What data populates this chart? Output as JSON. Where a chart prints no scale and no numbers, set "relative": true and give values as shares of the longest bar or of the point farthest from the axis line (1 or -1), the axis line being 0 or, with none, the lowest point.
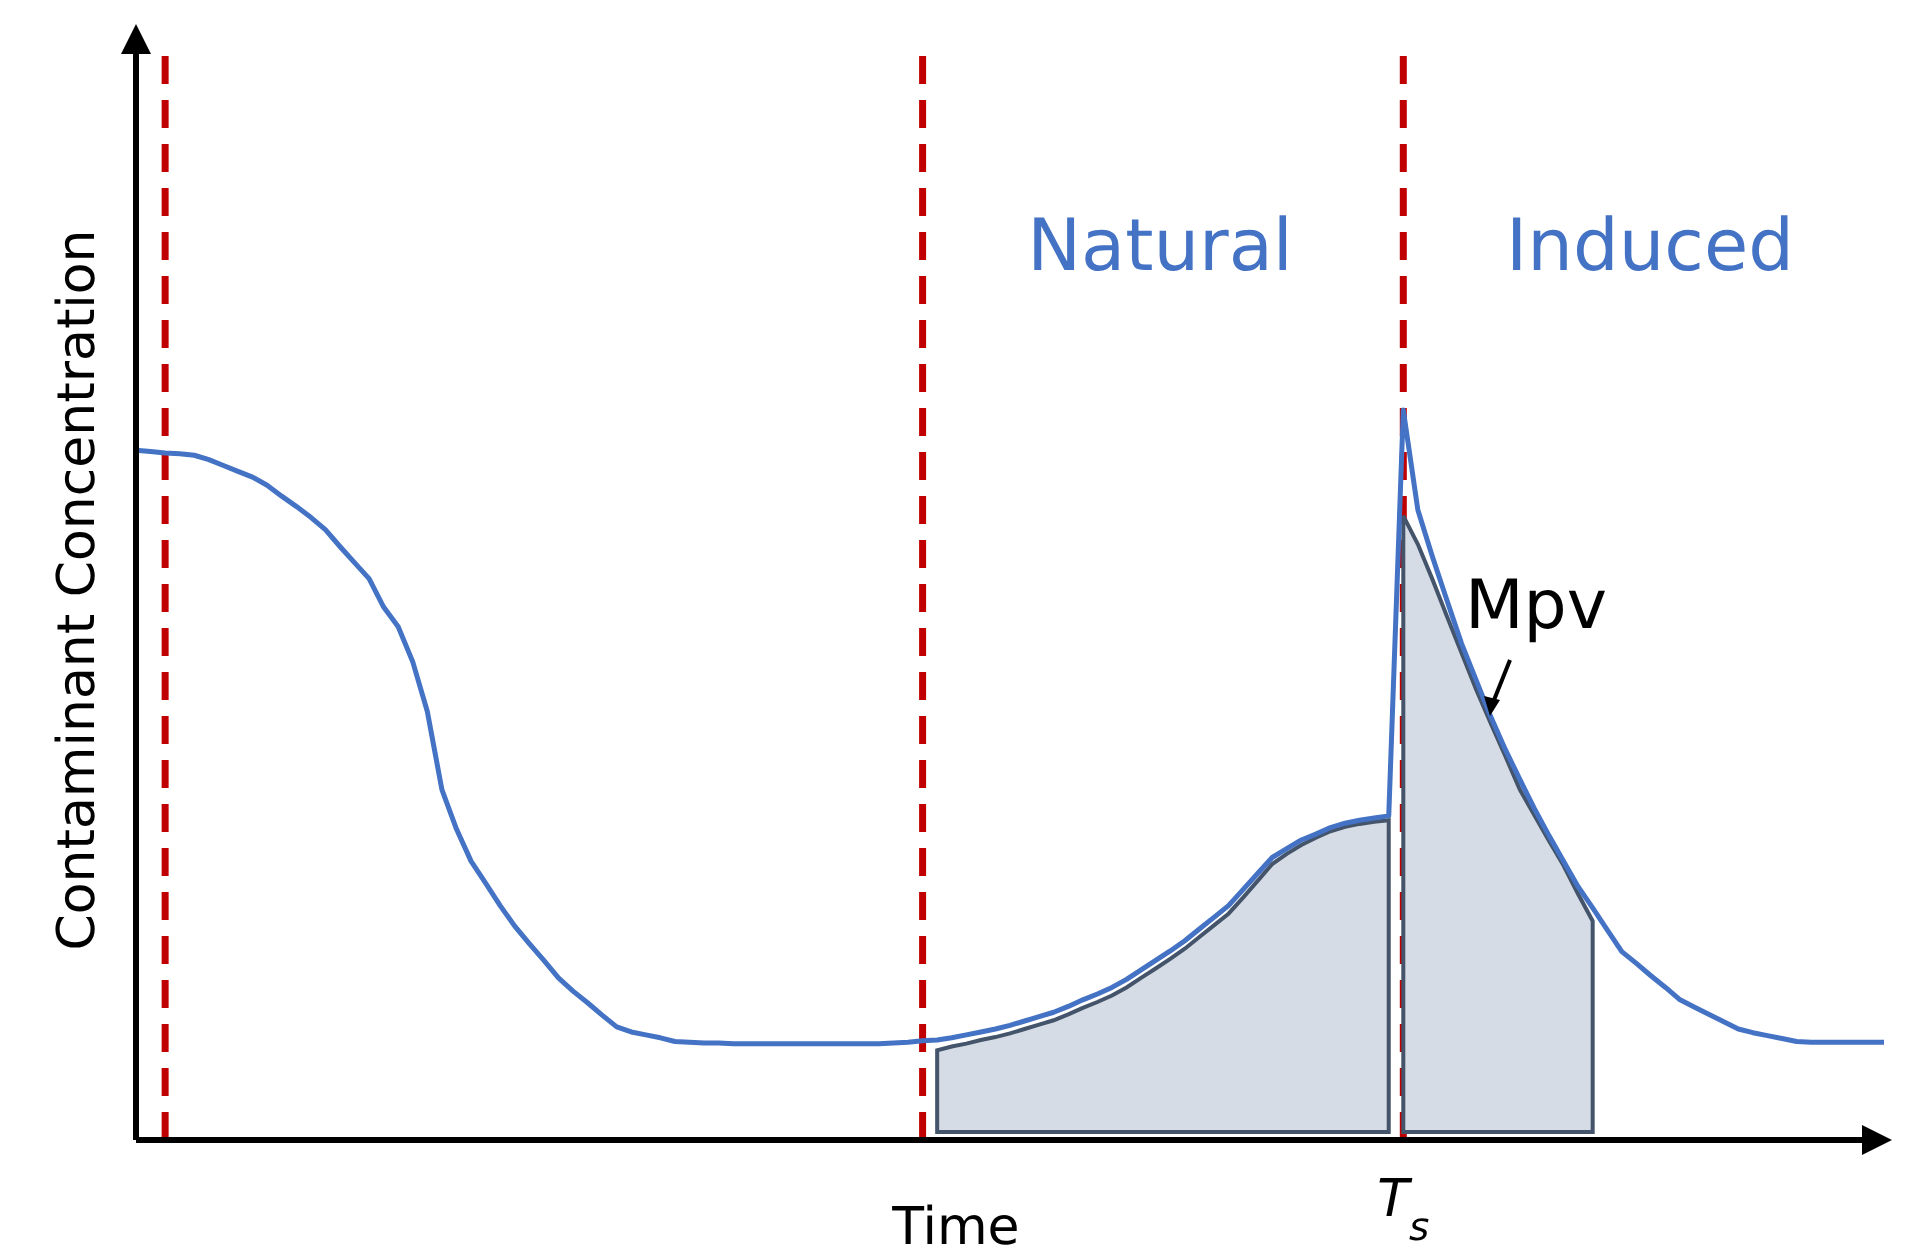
{
  "chart_data": {
    "type": "line",
    "relative": true,
    "xlabel": "Time",
    "ylabel": "Contaminant Concentration",
    "line_style": "solid",
    "grid": "x",
    "categories": [
      null,
      null,
      null,
      null,
      null,
      null,
      null,
      null,
      null,
      null,
      null,
      null,
      null,
      null,
      null,
      null,
      null,
      null,
      null,
      null,
      null,
      null,
      null,
      null,
      null,
      null,
      null,
      null,
      null,
      null,
      null,
      null,
      null,
      null,
      null,
      null,
      null,
      null,
      null,
      null,
      null,
      null,
      null,
      null,
      null,
      null,
      null,
      null,
      null,
      null,
      null,
      null,
      null,
      null,
      null,
      null,
      null,
      null,
      null,
      null,
      null,
      null,
      null,
      null,
      null,
      null,
      null,
      null,
      null,
      null,
      null,
      null,
      null,
      null,
      null,
      null,
      null,
      null,
      null,
      null,
      null,
      null,
      null,
      null,
      null,
      null,
      null,
      null,
      null,
      null,
      null,
      null,
      null,
      null,
      null,
      null,
      null,
      null,
      null,
      null,
      null,
      null,
      null,
      null,
      null,
      null,
      null,
      null,
      null,
      null,
      null,
      null,
      null,
      null,
      null,
      null,
      null,
      null,
      null,
      null,
      null
    ],
    "series": [
      {
        "type": "area",
        "color": "#d6dce5",
        "values": [
          null,
          null,
          null,
          null,
          null,
          null,
          null,
          null,
          null,
          null,
          null,
          null,
          null,
          null,
          null,
          null,
          null,
          null,
          null,
          null,
          null,
          null,
          null,
          null,
          null,
          null,
          null,
          null,
          null,
          null,
          null,
          null,
          null,
          null,
          null,
          null,
          null,
          null,
          null,
          null,
          null,
          null,
          null,
          null,
          null,
          null,
          null,
          null,
          null,
          null,
          null,
          null,
          null,
          null,
          null,
          0.123,
          0.128,
          0.132,
          0.137,
          0.141,
          0.146,
          0.152,
          0.158,
          0.164,
          0.172,
          0.181,
          0.189,
          0.198,
          0.209,
          0.222,
          0.235,
          0.248,
          0.262,
          0.278,
          0.294,
          0.31,
          0.332,
          0.355,
          0.378,
          0.392,
          0.404,
          0.414,
          0.423,
          0.429,
          0.433,
          0.436,
          0.438,
          null,
          null,
          null,
          null,
          null,
          null,
          null,
          null,
          null,
          null,
          null,
          null,
          null,
          null,
          null,
          null,
          null,
          null,
          null,
          null,
          null,
          null,
          null,
          null,
          null,
          null,
          null,
          null,
          null,
          null,
          null,
          null,
          null,
          null
        ]
      },
      {
        "type": "area",
        "color": "#d6dce5",
        "values": [
          null,
          null,
          null,
          null,
          null,
          null,
          null,
          null,
          null,
          null,
          null,
          null,
          null,
          null,
          null,
          null,
          null,
          null,
          null,
          null,
          null,
          null,
          null,
          null,
          null,
          null,
          null,
          null,
          null,
          null,
          null,
          null,
          null,
          null,
          null,
          null,
          null,
          null,
          null,
          null,
          null,
          null,
          null,
          null,
          null,
          null,
          null,
          null,
          null,
          null,
          null,
          null,
          null,
          null,
          null,
          null,
          null,
          null,
          null,
          null,
          null,
          null,
          null,
          null,
          null,
          null,
          null,
          null,
          null,
          null,
          null,
          null,
          null,
          null,
          null,
          null,
          null,
          null,
          null,
          null,
          null,
          null,
          null,
          null,
          null,
          null,
          null,
          0.855,
          0.816,
          0.768,
          0.717,
          0.667,
          0.617,
          0.571,
          0.526,
          0.48,
          0.445,
          0.41,
          0.376,
          0.337,
          0.3,
          null,
          null,
          null,
          null,
          null,
          null,
          null,
          null,
          null,
          null,
          null,
          null,
          null,
          null,
          null,
          null,
          null,
          null,
          null,
          null
        ]
      },
      {
        "color": "#4472c4",
        "values": [
          0.945,
          0.943,
          0.941,
          0.94,
          0.938,
          0.932,
          0.924,
          0.916,
          0.908,
          0.897,
          0.882,
          0.868,
          0.853,
          0.836,
          0.813,
          0.791,
          0.769,
          0.73,
          0.703,
          0.655,
          0.587,
          0.48,
          0.426,
          0.382,
          0.352,
          0.321,
          0.293,
          0.269,
          0.246,
          0.222,
          0.204,
          0.188,
          0.171,
          0.155,
          0.148,
          0.144,
          0.14,
          0.135,
          0.134,
          0.133,
          0.133,
          0.132,
          0.132,
          0.132,
          0.132,
          0.132,
          0.132,
          0.132,
          0.132,
          0.132,
          0.132,
          0.132,
          0.133,
          0.134,
          0.136,
          0.137,
          0.14,
          0.144,
          0.148,
          0.152,
          0.157,
          0.163,
          0.169,
          0.175,
          0.183,
          0.192,
          0.2,
          0.209,
          0.22,
          0.233,
          0.246,
          0.259,
          0.273,
          0.289,
          0.305,
          0.321,
          0.343,
          0.365,
          0.387,
          0.399,
          0.411,
          0.419,
          0.428,
          0.434,
          0.438,
          0.441,
          0.444,
          1,
          0.863,
          0.799,
          0.739,
          0.68,
          0.63,
          0.58,
          0.535,
          0.494,
          0.454,
          0.417,
          0.382,
          0.347,
          0.318,
          0.288,
          0.258,
          0.242,
          0.225,
          0.209,
          0.192,
          0.182,
          0.172,
          0.162,
          0.152,
          0.147,
          0.143,
          0.139,
          0.135,
          0.134,
          0.134,
          0.134,
          0.134,
          0.134,
          0.134
        ]
      }
    ],
    "annotations": [
      "Natural",
      "Induced",
      "Mpv",
      "T$_{s}$"
    ]
  }
}
